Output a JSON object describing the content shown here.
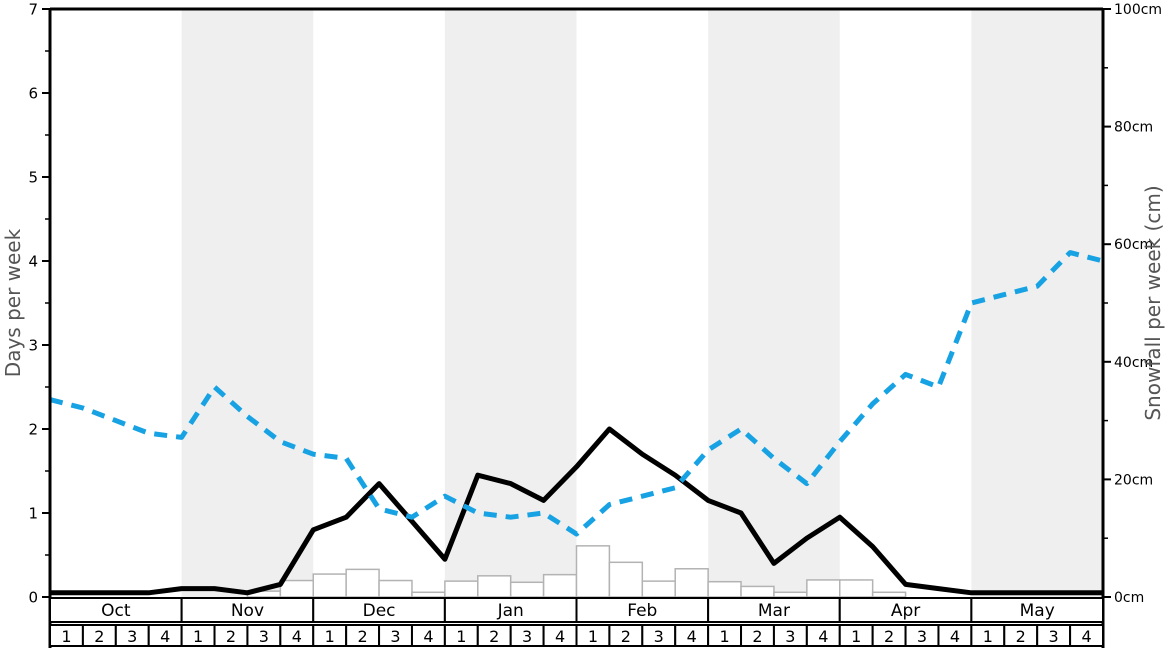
{
  "y_axis_left": {
    "label": "Days per week",
    "min": 0,
    "max": 7,
    "tick_labels": [
      "0",
      "1",
      "2",
      "3",
      "4",
      "5",
      "6",
      "7"
    ],
    "minor_tick_step": 0.5,
    "color": "#555555"
  },
  "y_axis_right": {
    "label": "Snowfall per week (cm)",
    "min": 0,
    "max": 100,
    "tick_labels": [
      "0cm",
      "20cm",
      "40cm",
      "60cm",
      "80cm",
      "100cm"
    ],
    "minor_tick_step": 10,
    "color": "#555555"
  },
  "x_axis": {
    "months": [
      {
        "label": "Oct",
        "weeks": [
          "1",
          "2",
          "3",
          "4"
        ]
      },
      {
        "label": "Nov",
        "weeks": [
          "1",
          "2",
          "3",
          "4"
        ]
      },
      {
        "label": "Dec",
        "weeks": [
          "1",
          "2",
          "3",
          "4"
        ]
      },
      {
        "label": "Jan",
        "weeks": [
          "1",
          "2",
          "3",
          "4"
        ]
      },
      {
        "label": "Feb",
        "weeks": [
          "1",
          "2",
          "3",
          "4"
        ]
      },
      {
        "label": "Mar",
        "weeks": [
          "1",
          "2",
          "3",
          "4"
        ]
      },
      {
        "label": "Apr",
        "weeks": [
          "1",
          "2",
          "3",
          "4"
        ]
      },
      {
        "label": "May",
        "weeks": [
          "1",
          "2",
          "3",
          "4"
        ]
      }
    ],
    "shaded_months": [
      "Nov",
      "Jan",
      "Mar",
      "May"
    ]
  },
  "chart_data": {
    "type": "mixed",
    "x_unit": "week boundaries, Oct week1 through end of May (33 points for lines, 32 cells for bars)",
    "series": [
      {
        "name": "days-black-line",
        "type": "line",
        "style": "solid",
        "color": "#000000",
        "axis": "left",
        "unit": "days",
        "values": [
          0.05,
          0.05,
          0.05,
          0.05,
          0.1,
          0.1,
          0.05,
          0.15,
          0.8,
          0.95,
          1.35,
          0.9,
          0.45,
          1.45,
          1.35,
          1.15,
          1.55,
          2.0,
          1.7,
          1.45,
          1.15,
          1.0,
          0.4,
          0.7,
          0.95,
          0.6,
          0.15,
          0.1,
          0.05,
          0.05,
          0.05,
          0.05,
          0.05
        ]
      },
      {
        "name": "days-blue-dashed-line",
        "type": "line",
        "style": "dashed",
        "color": "#17A2E3",
        "axis": "left",
        "unit": "days",
        "values": [
          2.35,
          2.25,
          2.1,
          1.95,
          1.9,
          2.5,
          2.15,
          1.85,
          1.7,
          1.65,
          1.05,
          0.95,
          1.2,
          1.0,
          0.95,
          1.0,
          0.75,
          1.1,
          1.2,
          1.3,
          1.75,
          2.0,
          1.65,
          1.35,
          1.85,
          2.3,
          2.65,
          2.5,
          3.5,
          3.6,
          3.7,
          4.1,
          4.0
        ]
      },
      {
        "name": "snowfall-bars",
        "type": "bar",
        "color_fill": "#ffffff",
        "color_stroke": "#b3b3b3",
        "axis": "right",
        "unit": "cm",
        "values": [
          0,
          0,
          0,
          0,
          0,
          0,
          1.0,
          2.8,
          3.9,
          4.7,
          2.8,
          0.8,
          2.7,
          3.6,
          2.5,
          3.8,
          8.7,
          5.9,
          2.7,
          4.8,
          2.6,
          1.8,
          0.8,
          2.9,
          2.9,
          0.8,
          0,
          0,
          0,
          0,
          0,
          0
        ]
      }
    ],
    "band_color": "#efefef",
    "grid": false,
    "legend": false
  }
}
